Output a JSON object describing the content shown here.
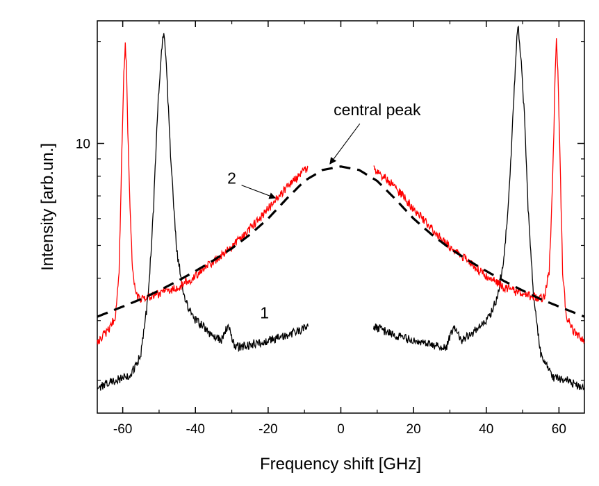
{
  "chart_data": {
    "type": "line",
    "title": "",
    "xlabel": "Frequency shift [GHz]",
    "ylabel": "Intensity [arb.un.]",
    "xlim": [
      -67,
      67
    ],
    "ylim": [
      1.6,
      23
    ],
    "yscale": "log",
    "grid": false,
    "x_ticks": [
      -60,
      -40,
      -20,
      0,
      20,
      40,
      60
    ],
    "x_tick_labels": [
      "-60",
      "-40",
      "-20",
      "0",
      "20",
      "40",
      "60"
    ],
    "y_ticks": [
      10
    ],
    "y_tick_labels": [
      "10"
    ],
    "series": [
      {
        "name": "1",
        "color": "#000000",
        "style": "solid",
        "gap": [
          -9,
          9
        ],
        "x": [
          -67,
          -62,
          -58,
          -55,
          -53,
          -51.5,
          -50.5,
          -49.5,
          -48.7,
          -48,
          -47,
          -46,
          -45,
          -43,
          -41,
          -39,
          -36,
          -33,
          -31,
          -29,
          -25,
          -20,
          -15,
          -10,
          -9,
          9,
          10,
          15,
          20,
          25,
          29,
          31,
          33,
          36,
          39,
          41,
          43,
          45,
          46,
          47,
          48,
          48.7,
          49.5,
          50.5,
          51.5,
          53,
          55,
          58,
          62,
          67
        ],
        "y": [
          1.9,
          2.0,
          2.05,
          2.4,
          3.5,
          6.5,
          12,
          18,
          21.5,
          17,
          10,
          6.5,
          4.7,
          3.5,
          3.1,
          2.95,
          2.75,
          2.62,
          2.9,
          2.5,
          2.55,
          2.62,
          2.72,
          2.85,
          2.88,
          2.88,
          2.85,
          2.72,
          2.62,
          2.55,
          2.5,
          2.9,
          2.62,
          2.75,
          2.95,
          3.1,
          3.5,
          4.7,
          6.5,
          10,
          17,
          22.5,
          18,
          12,
          6.5,
          3.5,
          2.4,
          2.05,
          2.0,
          1.9
        ]
      },
      {
        "name": "2",
        "color": "#ff0000",
        "style": "solid",
        "gap": [
          -9,
          9
        ],
        "x": [
          -67,
          -64,
          -62,
          -61,
          -60.3,
          -59.7,
          -59.3,
          -59,
          -58.6,
          -58,
          -57.3,
          -56,
          -54,
          -50,
          -45,
          -40,
          -35,
          -30,
          -25,
          -20,
          -17,
          -14,
          -11,
          -9,
          9,
          11,
          14,
          17,
          20,
          25,
          30,
          35,
          40,
          45,
          50,
          54,
          56,
          57.3,
          58,
          58.6,
          59,
          59.3,
          59.7,
          60.3,
          61,
          62,
          64,
          67
        ],
        "y": [
          2.6,
          2.8,
          3.1,
          4.2,
          9,
          16,
          19.5,
          17,
          11,
          6.5,
          4.2,
          3.5,
          3.5,
          3.6,
          3.75,
          4.05,
          4.5,
          4.95,
          5.6,
          6.4,
          7.0,
          7.6,
          8.1,
          8.5,
          8.5,
          8.1,
          7.6,
          7.0,
          6.4,
          5.6,
          4.95,
          4.5,
          4.05,
          3.75,
          3.6,
          3.5,
          3.5,
          4.2,
          6.5,
          11,
          17,
          20,
          16,
          9,
          4.2,
          3.1,
          2.8,
          2.6
        ]
      },
      {
        "name": "central peak",
        "color": "#000000",
        "style": "dashed",
        "x": [
          -67,
          -60,
          -55,
          -50,
          -45,
          -40,
          -35,
          -30,
          -25,
          -20,
          -15,
          -10,
          -5,
          0,
          5,
          10,
          15,
          20,
          25,
          30,
          35,
          40,
          45,
          50,
          55,
          60,
          67
        ],
        "y": [
          3.08,
          3.3,
          3.47,
          3.68,
          3.92,
          4.2,
          4.52,
          4.9,
          5.38,
          6.0,
          6.85,
          7.75,
          8.35,
          8.55,
          8.35,
          7.75,
          6.85,
          6.0,
          5.38,
          4.9,
          4.52,
          4.2,
          3.92,
          3.68,
          3.47,
          3.3,
          3.08
        ]
      }
    ],
    "annotations": [
      {
        "text": "central peak",
        "x": 10,
        "y": 12.1,
        "arrow_to": [
          -3,
          8.7
        ]
      },
      {
        "text": "2",
        "x": -30,
        "y": 7.6,
        "arrow_to": [
          -18,
          6.9
        ]
      },
      {
        "text": "1",
        "x": -21,
        "y": 3.05
      }
    ]
  }
}
